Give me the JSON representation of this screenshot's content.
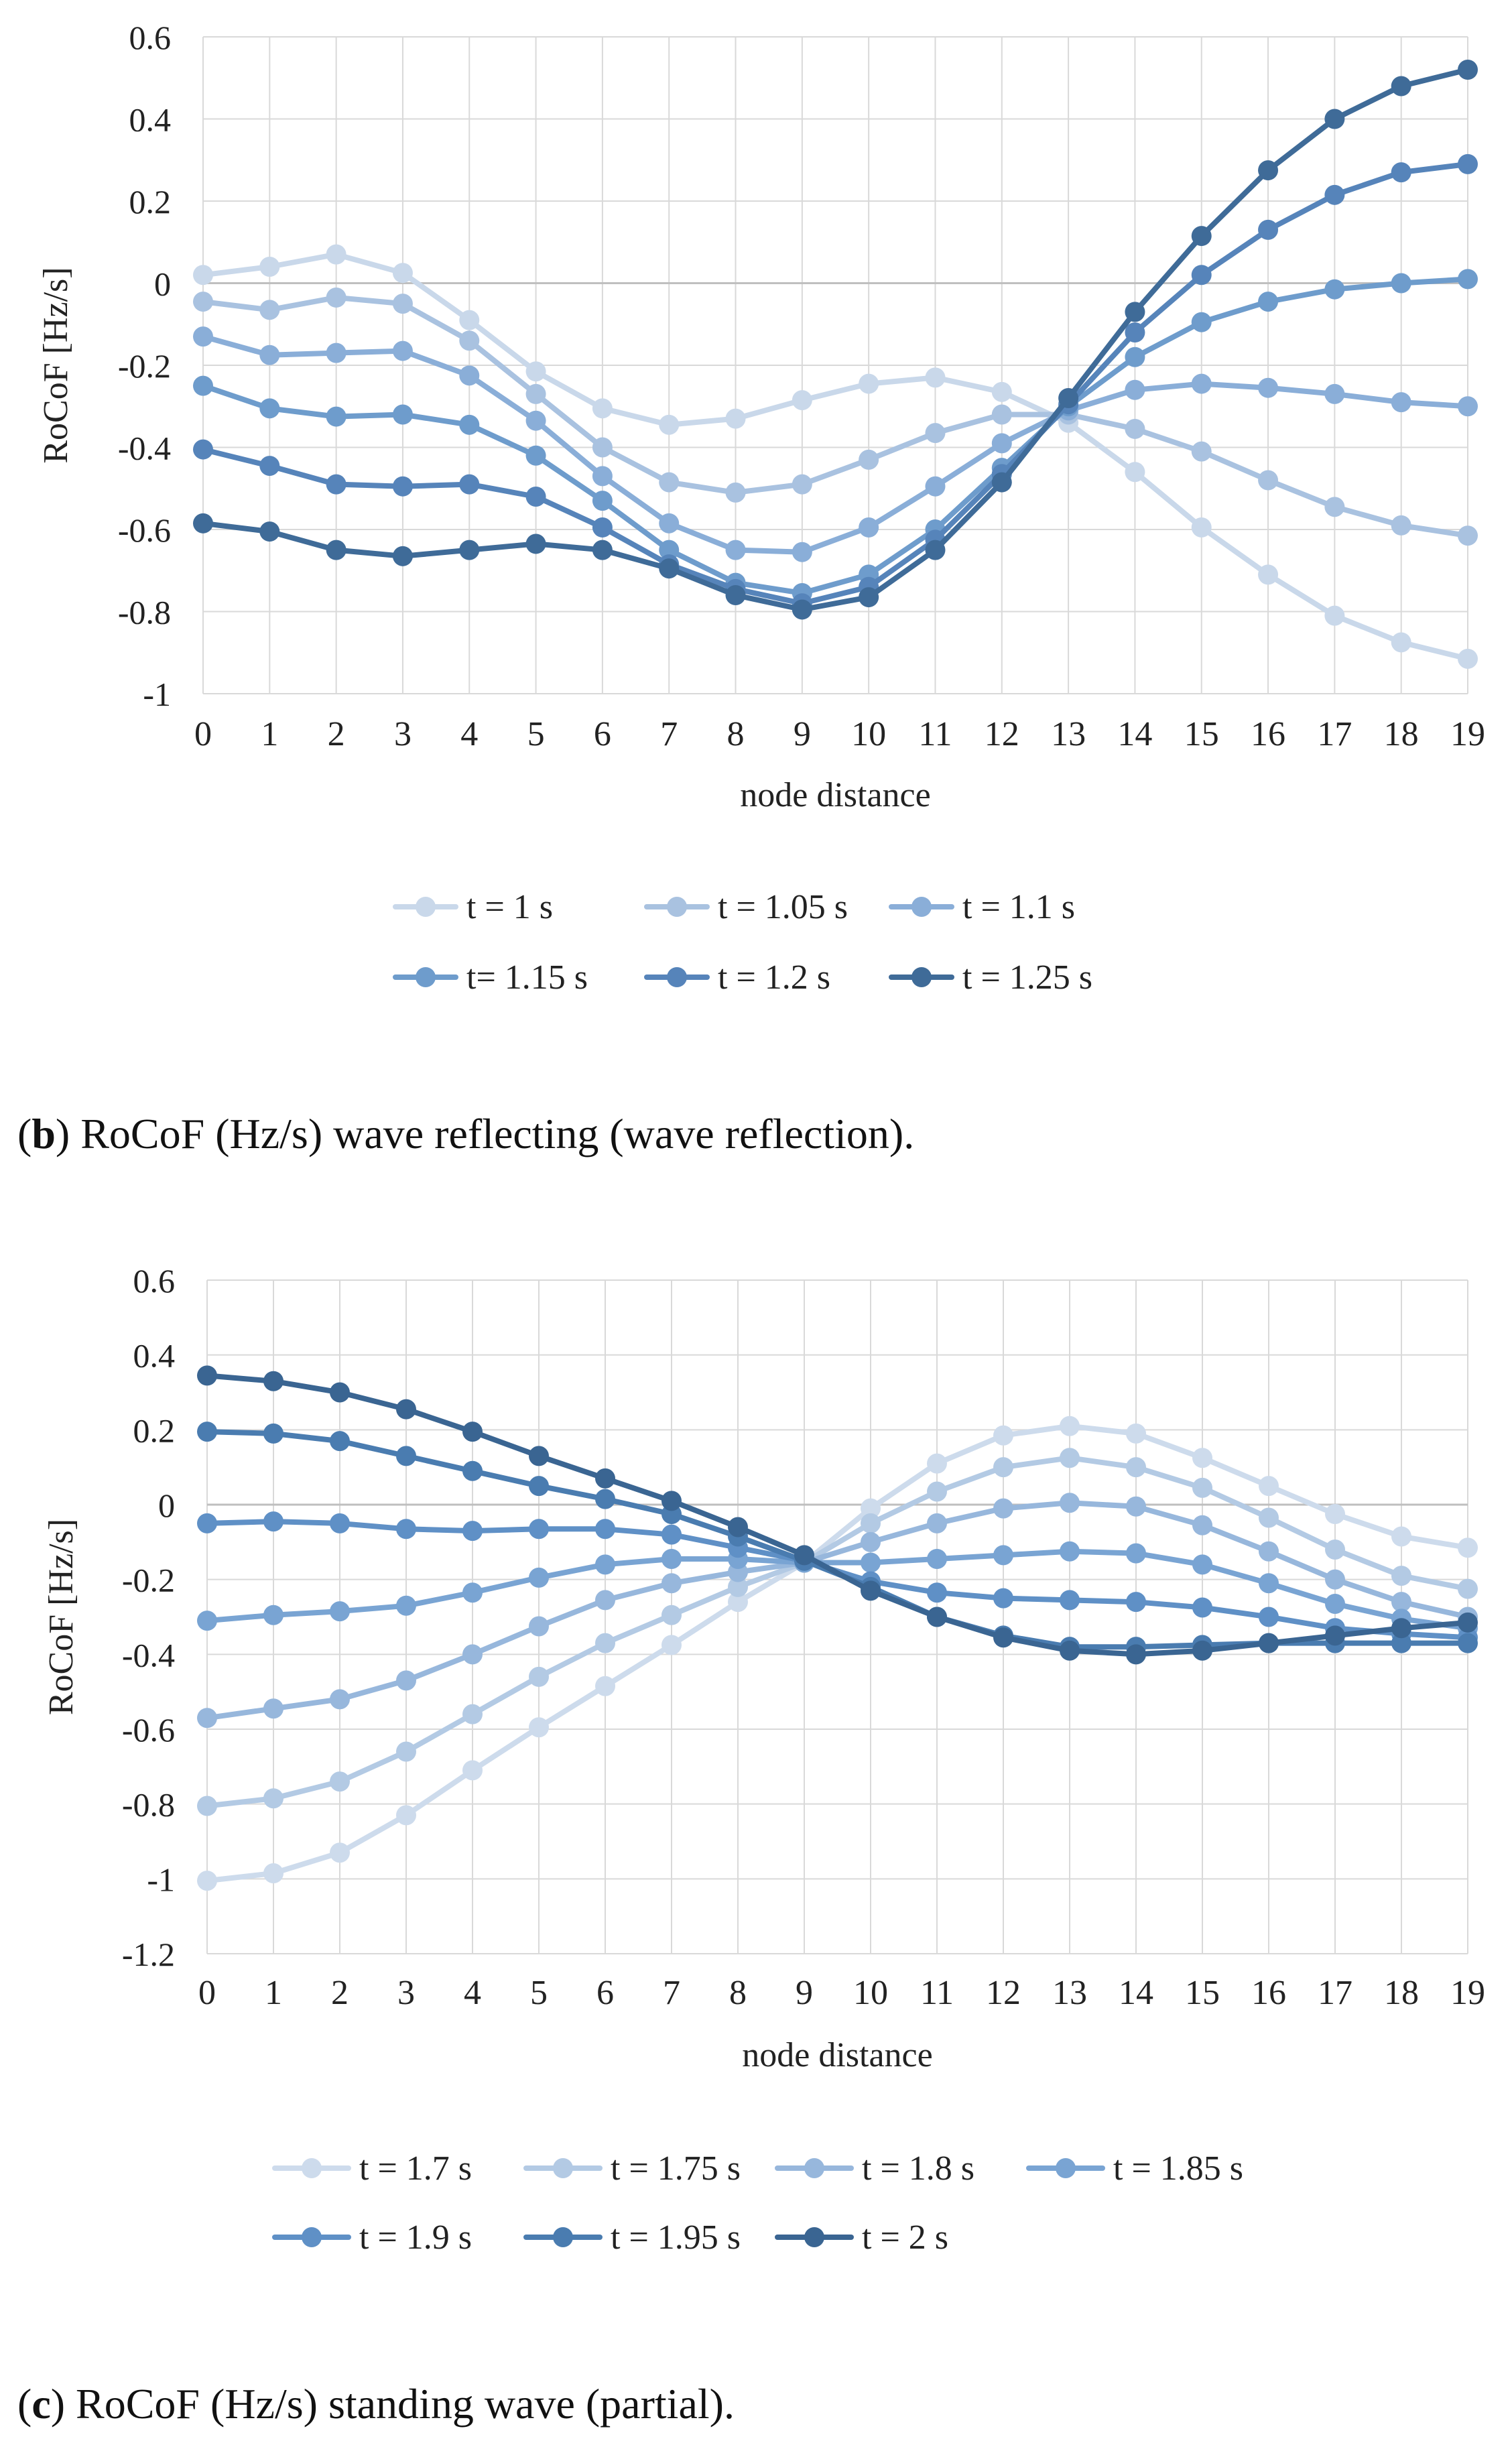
{
  "chart_data": [
    {
      "type": "line",
      "panel": "b",
      "caption_prefix": "b",
      "caption_text": "RoCoF (Hz/s) wave reflecting (wave reflection).",
      "title": "",
      "xlabel": "node distance",
      "ylabel": "RoCoF [Hz/s]",
      "ylim": [
        -1,
        0.6
      ],
      "ytick_step": 0.2,
      "yticks": [
        "-1",
        "-0.8",
        "-0.6",
        "-0.4",
        "-0.2",
        "0",
        "0.2",
        "0.4",
        "0.6"
      ],
      "x": [
        0,
        1,
        2,
        3,
        4,
        5,
        6,
        7,
        8,
        9,
        10,
        11,
        12,
        13,
        14,
        15,
        16,
        17,
        18,
        19
      ],
      "xticks": [
        "0",
        "1",
        "2",
        "3",
        "4",
        "5",
        "6",
        "7",
        "8",
        "9",
        "10",
        "11",
        "12",
        "13",
        "14",
        "15",
        "16",
        "17",
        "18",
        "19"
      ],
      "grid": true,
      "legend_position": "bottom",
      "legend_rows": [
        [
          0,
          1,
          2
        ],
        [
          3,
          4,
          5
        ]
      ],
      "series": [
        {
          "name": "t = 1 s",
          "color": "#c9d8ea",
          "values": [
            0.02,
            0.04,
            0.07,
            0.025,
            -0.09,
            -0.215,
            -0.305,
            -0.345,
            -0.33,
            -0.285,
            -0.245,
            -0.23,
            -0.265,
            -0.34,
            -0.46,
            -0.595,
            -0.71,
            -0.81,
            -0.875,
            -0.915
          ]
        },
        {
          "name": "t = 1.05 s",
          "color": "#a9c2e0",
          "values": [
            -0.045,
            -0.065,
            -0.035,
            -0.05,
            -0.14,
            -0.27,
            -0.4,
            -0.485,
            -0.51,
            -0.49,
            -0.43,
            -0.365,
            -0.32,
            -0.32,
            -0.355,
            -0.41,
            -0.48,
            -0.545,
            -0.59,
            -0.615
          ]
        },
        {
          "name": "t = 1.1 s",
          "color": "#8aaed8",
          "values": [
            -0.13,
            -0.175,
            -0.17,
            -0.165,
            -0.225,
            -0.335,
            -0.47,
            -0.585,
            -0.65,
            -0.655,
            -0.595,
            -0.495,
            -0.39,
            -0.31,
            -0.26,
            -0.245,
            -0.255,
            -0.27,
            -0.29,
            -0.3
          ]
        },
        {
          "name": "t= 1.15 s",
          "color": "#6e9ccc",
          "values": [
            -0.25,
            -0.305,
            -0.325,
            -0.32,
            -0.345,
            -0.42,
            -0.53,
            -0.65,
            -0.73,
            -0.755,
            -0.71,
            -0.6,
            -0.45,
            -0.3,
            -0.18,
            -0.095,
            -0.045,
            -0.015,
            0.0,
            0.01
          ]
        },
        {
          "name": "t = 1.2 s",
          "color": "#5684ba",
          "values": [
            -0.405,
            -0.445,
            -0.49,
            -0.495,
            -0.49,
            -0.52,
            -0.595,
            -0.685,
            -0.745,
            -0.78,
            -0.74,
            -0.625,
            -0.465,
            -0.295,
            -0.12,
            0.02,
            0.13,
            0.215,
            0.27,
            0.29
          ]
        },
        {
          "name": "t = 1.25 s",
          "color": "#3f6b98",
          "values": [
            -0.585,
            -0.605,
            -0.65,
            -0.665,
            -0.65,
            -0.635,
            -0.65,
            -0.695,
            -0.76,
            -0.795,
            -0.765,
            -0.65,
            -0.485,
            -0.28,
            -0.07,
            0.115,
            0.275,
            0.4,
            0.48,
            0.52
          ]
        }
      ]
    },
    {
      "type": "line",
      "panel": "c",
      "caption_prefix": "c",
      "caption_text": "RoCoF (Hz/s) standing wave (partial).",
      "title": "",
      "xlabel": "node distance",
      "ylabel": "RoCoF [Hz/s]",
      "ylim": [
        -1.2,
        0.6
      ],
      "ytick_step": 0.2,
      "yticks": [
        "-1.2",
        "-1",
        "-0.8",
        "-0.6",
        "-0.4",
        "-0.2",
        "0",
        "0.2",
        "0.4",
        "0.6"
      ],
      "x": [
        0,
        1,
        2,
        3,
        4,
        5,
        6,
        7,
        8,
        9,
        10,
        11,
        12,
        13,
        14,
        15,
        16,
        17,
        18,
        19
      ],
      "xticks": [
        "0",
        "1",
        "2",
        "3",
        "4",
        "5",
        "6",
        "7",
        "8",
        "9",
        "10",
        "11",
        "12",
        "13",
        "14",
        "15",
        "16",
        "17",
        "18",
        "19"
      ],
      "grid": true,
      "legend_position": "bottom",
      "legend_rows": [
        [
          0,
          1,
          2,
          3
        ],
        [
          4,
          5,
          6
        ]
      ],
      "series": [
        {
          "name": "t = 1.7 s",
          "color": "#cddbec",
          "values": [
            -1.005,
            -0.985,
            -0.93,
            -0.83,
            -0.71,
            -0.595,
            -0.485,
            -0.375,
            -0.26,
            -0.155,
            -0.01,
            0.11,
            0.185,
            0.21,
            0.19,
            0.125,
            0.05,
            -0.025,
            -0.085,
            -0.115
          ]
        },
        {
          "name": "t = 1.75 s",
          "color": "#b3cae4",
          "values": [
            -0.805,
            -0.785,
            -0.74,
            -0.66,
            -0.56,
            -0.46,
            -0.37,
            -0.295,
            -0.22,
            -0.155,
            -0.05,
            0.035,
            0.1,
            0.125,
            0.1,
            0.045,
            -0.035,
            -0.12,
            -0.19,
            -0.225
          ]
        },
        {
          "name": "t = 1.8 s",
          "color": "#97b7dc",
          "values": [
            -0.57,
            -0.545,
            -0.52,
            -0.47,
            -0.4,
            -0.325,
            -0.255,
            -0.21,
            -0.18,
            -0.155,
            -0.1,
            -0.05,
            -0.01,
            0.005,
            -0.005,
            -0.055,
            -0.125,
            -0.2,
            -0.26,
            -0.3
          ]
        },
        {
          "name": "t = 1.85 s",
          "color": "#79a4d3",
          "values": [
            -0.31,
            -0.295,
            -0.285,
            -0.27,
            -0.235,
            -0.195,
            -0.16,
            -0.145,
            -0.145,
            -0.155,
            -0.155,
            -0.145,
            -0.135,
            -0.125,
            -0.13,
            -0.16,
            -0.21,
            -0.265,
            -0.305,
            -0.33
          ]
        },
        {
          "name": "t = 1.9 s",
          "color": "#5f90c6",
          "values": [
            -0.05,
            -0.045,
            -0.05,
            -0.065,
            -0.07,
            -0.065,
            -0.065,
            -0.08,
            -0.115,
            -0.15,
            -0.205,
            -0.235,
            -0.25,
            -0.255,
            -0.26,
            -0.275,
            -0.3,
            -0.33,
            -0.345,
            -0.355
          ]
        },
        {
          "name": "t = 1.95 s",
          "color": "#4a7cb0",
          "values": [
            0.195,
            0.19,
            0.17,
            0.13,
            0.09,
            0.05,
            0.015,
            -0.025,
            -0.085,
            -0.15,
            -0.22,
            -0.3,
            -0.35,
            -0.38,
            -0.38,
            -0.375,
            -0.37,
            -0.37,
            -0.37,
            -0.37
          ]
        },
        {
          "name": "t = 2 s",
          "color": "#3a6592",
          "values": [
            0.345,
            0.33,
            0.3,
            0.255,
            0.195,
            0.13,
            0.07,
            0.01,
            -0.06,
            -0.135,
            -0.23,
            -0.3,
            -0.355,
            -0.39,
            -0.4,
            -0.39,
            -0.37,
            -0.35,
            -0.33,
            -0.315
          ]
        }
      ]
    }
  ]
}
